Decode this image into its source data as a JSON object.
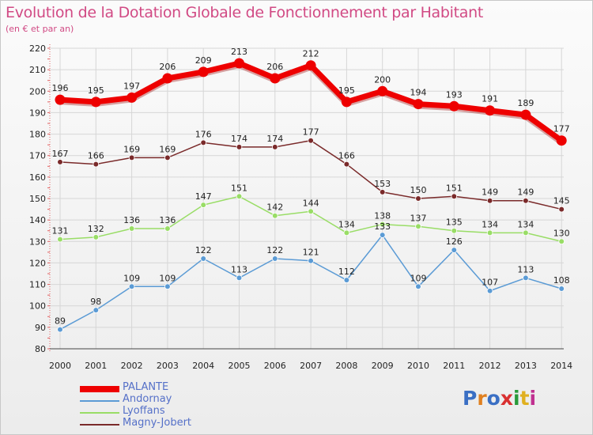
{
  "title": "Evolution de la Dotation Globale de Fonctionnement par Habitant",
  "subtitle": "(en € et par an)",
  "logo": {
    "text": "Proxiti",
    "colors": [
      "#3a6fc4",
      "#e08020",
      "#3a6fc4",
      "#d93030",
      "#2a9a3a",
      "#e0b020",
      "#c03090"
    ]
  },
  "chart_data": {
    "type": "line",
    "title": "Evolution de la Dotation Globale de Fonctionnement par Habitant",
    "subtitle": "(en € et par an)",
    "categories": [
      "2000",
      "2001",
      "2002",
      "2003",
      "2004",
      "2005",
      "2006",
      "2007",
      "2008",
      "2009",
      "2010",
      "2011",
      "2012",
      "2013",
      "2014"
    ],
    "ylim": [
      80,
      220
    ],
    "yticks": [
      80,
      90,
      100,
      110,
      120,
      130,
      140,
      150,
      160,
      170,
      180,
      190,
      200,
      210,
      220
    ],
    "grid": true,
    "legend_position": "bottom-left",
    "series": [
      {
        "name": "PALANTE",
        "color": "#ee0000",
        "emphasis": true,
        "values": [
          196,
          195,
          197,
          206,
          209,
          213,
          206,
          212,
          195,
          200,
          194,
          193,
          191,
          189,
          177
        ]
      },
      {
        "name": "Andornay",
        "color": "#5b9bd5",
        "emphasis": false,
        "values": [
          89,
          98,
          109,
          109,
          122,
          113,
          122,
          121,
          112,
          133,
          109,
          126,
          107,
          113,
          108
        ]
      },
      {
        "name": "Lyoffans",
        "color": "#99dd66",
        "emphasis": false,
        "values": [
          131,
          132,
          136,
          136,
          147,
          151,
          142,
          144,
          134,
          138,
          137,
          135,
          134,
          134,
          130
        ]
      },
      {
        "name": "Magny-Jobert",
        "color": "#7a2a2a",
        "emphasis": false,
        "values": [
          167,
          166,
          169,
          169,
          176,
          174,
          174,
          177,
          166,
          153,
          150,
          151,
          149,
          149,
          145
        ]
      }
    ]
  }
}
